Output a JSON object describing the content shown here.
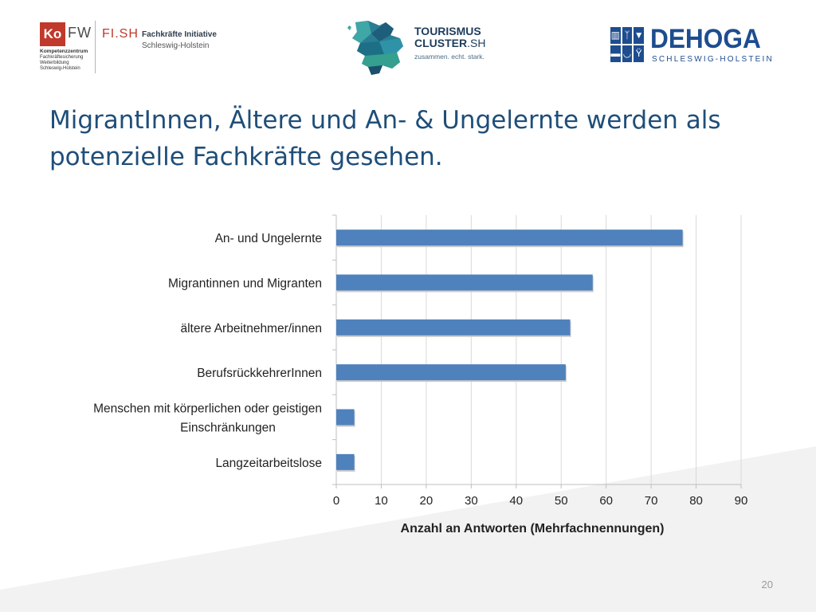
{
  "logos": {
    "kofw": {
      "ko": "Ko",
      "fw": "FW",
      "sub_bold": "Kompetenzzentrum",
      "sub_lines": [
        "Fachkräftesicherung",
        "Weiterbildung",
        "Schleswig-Holstein"
      ],
      "fish_mark": "FI.SH",
      "fish_title": "Fachkräfte Initiative",
      "fish_sub": "Schleswig-Holstein"
    },
    "tourismus": {
      "line1": "TOURISMUS",
      "line2_bold": "CLUSTER",
      "line2_light": ".SH",
      "tagline": "zusammen. echt. stark."
    },
    "dehoga": {
      "word": "DEHOGA",
      "sub": "SCHLESWIG-HOLSTEIN"
    }
  },
  "slide": {
    "title": "MigrantInnen, Ältere und An- & Ungelernte werden als potenzielle Fachkräfte gesehen.",
    "page_number": "20"
  },
  "chart_data": {
    "type": "bar",
    "orientation": "horizontal",
    "categories": [
      "An- und Ungelernte",
      "Migrantinnen und Migranten",
      "ältere Arbeitnehmer/innen",
      "BerufsrückkehrerInnen",
      "Menschen mit körperlichen oder geistigen Einschränkungen",
      "Langzeitarbeitslose"
    ],
    "category_label_lines": [
      [
        "An- und Ungelernte"
      ],
      [
        "Migrantinnen und Migranten"
      ],
      [
        "ältere Arbeitnehmer/innen"
      ],
      [
        "BerufsrückkehrerInnen"
      ],
      [
        "Menschen mit körperlichen oder geistigen",
        "Einschränkungen"
      ],
      [
        "Langzeitarbeitslose"
      ]
    ],
    "values": [
      77,
      57,
      52,
      51,
      4,
      4
    ],
    "xlabel": "Anzahl an Antworten (Mehrfachnennungen)",
    "xlim": [
      0,
      90
    ],
    "xticks": [
      0,
      10,
      20,
      30,
      40,
      50,
      60,
      70,
      80,
      90
    ],
    "grid": "vertical",
    "legend": "none",
    "bar_color": "#4f81bd"
  }
}
